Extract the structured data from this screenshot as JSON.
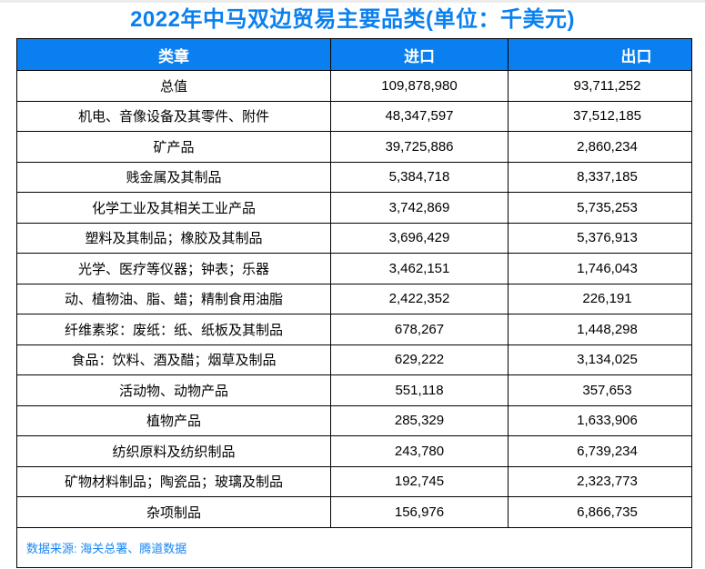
{
  "title": "2022年中马双边贸易主要品类(单位：千美元)",
  "table": {
    "headers": {
      "category": "类章",
      "import": "进口",
      "export": "出口"
    },
    "rows": [
      {
        "category": "总值",
        "import": "109,878,980",
        "export": "93,711,252"
      },
      {
        "category": "机电、音像设备及其零件、附件",
        "import": "48,347,597",
        "export": "37,512,185"
      },
      {
        "category": "矿产品",
        "import": "39,725,886",
        "export": "2,860,234"
      },
      {
        "category": "贱金属及其制品",
        "import": "5,384,718",
        "export": "8,337,185"
      },
      {
        "category": "化学工业及其相关工业产品",
        "import": "3,742,869",
        "export": "5,735,253"
      },
      {
        "category": "塑料及其制品；橡胶及其制品",
        "import": "3,696,429",
        "export": "5,376,913"
      },
      {
        "category": "光学、医疗等仪器；钟表；乐器",
        "import": "3,462,151",
        "export": "1,746,043"
      },
      {
        "category": "动、植物油、脂、蜡；精制食用油脂",
        "import": "2,422,352",
        "export": "226,191"
      },
      {
        "category": "纤维素浆：废纸：纸、纸板及其制品",
        "import": "678,267",
        "export": "1,448,298"
      },
      {
        "category": "食品：饮料、酒及醋；烟草及制品",
        "import": "629,222",
        "export": "3,134,025"
      },
      {
        "category": "活动物、动物产品",
        "import": "551,118",
        "export": "357,653"
      },
      {
        "category": "植物产品",
        "import": "285,329",
        "export": "1,633,906"
      },
      {
        "category": "纺织原料及纺织制品",
        "import": "243,780",
        "export": "6,739,234"
      },
      {
        "category": "矿物材料制品；陶瓷品；玻璃及制品",
        "import": "192,745",
        "export": "2,323,773"
      },
      {
        "category": "杂项制品",
        "import": "156,976",
        "export": "6,866,735"
      }
    ]
  },
  "source_note": "数据来源: 海关总署、腾道数据",
  "colors": {
    "accent": "#0a80f0",
    "header_text": "#ffffff",
    "source_text": "#1887f2",
    "border": "#000000",
    "background": "#ffffff"
  },
  "chart_data": {
    "type": "table",
    "title": "2022年中马双边贸易主要品类(单位：千美元)",
    "unit": "千美元",
    "columns": [
      "类章",
      "进口",
      "出口"
    ],
    "categories": [
      "总值",
      "机电、音像设备及其零件、附件",
      "矿产品",
      "贱金属及其制品",
      "化学工业及其相关工业产品",
      "塑料及其制品；橡胶及其制品",
      "光学、医疗等仪器；钟表；乐器",
      "动、植物油、脂、蜡；精制食用油脂",
      "纤维素浆：废纸：纸、纸板及其制品",
      "食品：饮料、酒及醋；烟草及制品",
      "活动物、动物产品",
      "植物产品",
      "纺织原料及纺织制品",
      "矿物材料制品；陶瓷品；玻璃及制品",
      "杂项制品"
    ],
    "series": [
      {
        "name": "进口",
        "values": [
          109878980,
          48347597,
          39725886,
          5384718,
          3742869,
          3696429,
          3462151,
          2422352,
          678267,
          629222,
          551118,
          285329,
          243780,
          192745,
          156976
        ]
      },
      {
        "name": "出口",
        "values": [
          93711252,
          37512185,
          2860234,
          8337185,
          5735253,
          5376913,
          1746043,
          226191,
          1448298,
          3134025,
          357653,
          1633906,
          6739234,
          2323773,
          6866735
        ]
      }
    ],
    "source": "数据来源: 海关总署、腾道数据"
  }
}
